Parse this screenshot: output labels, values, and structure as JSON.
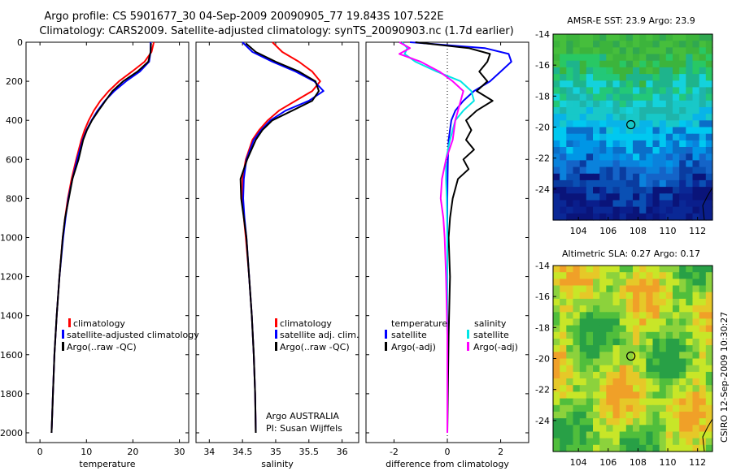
{
  "title_line1": "Argo profile: CS 5901677_30 04-Sep-2009 20090905_77 19.843S 107.522E",
  "title_line2": "Climatology: CARS2009. Satellite-adjusted climatology: synTS_20090903.nc (1.7d earlier)",
  "side_credit": "CSIRO 12-Sep-2009 10:30:27",
  "map_sst": {
    "title": "AMSR-E SST: 23.9 Argo: 23.9",
    "xticks": [
      "104",
      "106",
      "108",
      "110",
      "112"
    ],
    "yticks": [
      "-14",
      "-16",
      "-18",
      "-20",
      "-22",
      "-24"
    ],
    "float_lon": 107.522,
    "float_lat": -19.843
  },
  "map_sla": {
    "title": "Altimetric SLA: 0.27 Argo: 0.17",
    "xticks": [
      "104",
      "106",
      "108",
      "110",
      "112"
    ],
    "yticks": [
      "-14",
      "-16",
      "-18",
      "-20",
      "-22",
      "-24"
    ],
    "float_lon": 107.522,
    "float_lat": -19.843
  },
  "colors": {
    "climatology": "#ff0000",
    "satellite_adjusted": "#0000ff",
    "argo": "#000000",
    "salinity_satellite": "#00e5e5",
    "salinity_argo": "#ff00ff"
  },
  "chart_data": [
    {
      "type": "line",
      "xlabel": "temperature",
      "ylabel": "",
      "xlim": [
        -3,
        32
      ],
      "ylim": [
        2050,
        0
      ],
      "xticks": [
        "0",
        "10",
        "20",
        "30"
      ],
      "yticks": [
        "0",
        "200",
        "400",
        "600",
        "800",
        "1000",
        "1200",
        "1400",
        "1600",
        "1800",
        "2000"
      ],
      "legend": [
        "climatology",
        "satellite-adjusted climatology",
        "Argo(..raw -QC)"
      ],
      "series": [
        {
          "name": "climatology",
          "y": [
            0,
            50,
            100,
            150,
            200,
            250,
            300,
            350,
            400,
            450,
            500,
            600,
            700,
            800,
            900,
            1000,
            1200,
            1400,
            1600,
            1800,
            2000
          ],
          "x": [
            24.5,
            24.0,
            22.5,
            19.8,
            17.0,
            14.8,
            13.0,
            11.6,
            10.5,
            9.6,
            8.9,
            7.8,
            6.8,
            6.0,
            5.4,
            4.9,
            4.2,
            3.6,
            3.1,
            2.8,
            2.5
          ]
        },
        {
          "name": "satellite-adjusted climatology",
          "y": [
            0,
            50,
            100,
            150,
            200,
            250,
            300,
            350,
            400,
            450,
            500,
            600,
            700,
            800,
            900,
            1000,
            1200,
            1400,
            1600,
            1800,
            2000
          ],
          "x": [
            23.8,
            23.8,
            23.5,
            21.5,
            18.5,
            16.0,
            14.0,
            12.4,
            11.1,
            10.0,
            9.2,
            8.0,
            7.0,
            6.1,
            5.5,
            5.0,
            4.2,
            3.6,
            3.1,
            2.8,
            2.5
          ]
        },
        {
          "name": "Argo(..raw -QC)",
          "y": [
            5,
            50,
            100,
            150,
            200,
            250,
            300,
            350,
            400,
            450,
            500,
            600,
            700,
            800,
            900,
            1000,
            1200,
            1400,
            1600,
            1800,
            2000
          ],
          "x": [
            23.9,
            23.8,
            23.3,
            21.0,
            17.9,
            15.6,
            14.1,
            12.6,
            11.2,
            10.1,
            9.3,
            8.3,
            7.0,
            6.2,
            5.4,
            4.9,
            4.2,
            3.6,
            3.1,
            2.8,
            2.5
          ]
        }
      ]
    },
    {
      "type": "line",
      "xlabel": "salinity",
      "ylabel": "",
      "xlim": [
        33.8,
        36.25
      ],
      "ylim": [
        2050,
        0
      ],
      "xticks": [
        "34",
        "34.5",
        "35",
        "35.5",
        "36"
      ],
      "legend": [
        "climatology",
        "satellite adj. clim.",
        "Argo(..raw -QC)"
      ],
      "annotation": [
        "Argo AUSTRALIA",
        "PI: Susan Wijffels"
      ],
      "series": [
        {
          "name": "climatology",
          "y": [
            0,
            50,
            100,
            150,
            200,
            250,
            300,
            350,
            400,
            450,
            500,
            600,
            700,
            800,
            900,
            1000,
            1200,
            1400,
            1600,
            1800,
            2000
          ],
          "x": [
            34.95,
            35.1,
            35.35,
            35.55,
            35.67,
            35.55,
            35.3,
            35.05,
            34.88,
            34.75,
            34.65,
            34.55,
            34.5,
            34.5,
            34.52,
            34.55,
            34.6,
            34.64,
            34.67,
            34.69,
            34.7
          ]
        },
        {
          "name": "satellite adj. clim.",
          "y": [
            0,
            50,
            100,
            150,
            200,
            250,
            300,
            350,
            400,
            450,
            500,
            600,
            700,
            800,
            900,
            1000,
            1200,
            1400,
            1600,
            1800,
            2000
          ],
          "x": [
            34.5,
            34.65,
            34.95,
            35.3,
            35.58,
            35.72,
            35.5,
            35.15,
            34.92,
            34.78,
            34.67,
            34.56,
            34.52,
            34.51,
            34.53,
            34.56,
            34.6,
            34.64,
            34.67,
            34.69,
            34.7
          ]
        },
        {
          "name": "Argo(..raw -QC)",
          "y": [
            5,
            50,
            100,
            150,
            200,
            250,
            300,
            350,
            400,
            450,
            500,
            600,
            700,
            800,
            900,
            1000,
            1200,
            1400,
            1600,
            1800,
            2000
          ],
          "x": [
            34.55,
            34.7,
            35.0,
            35.35,
            35.6,
            35.65,
            35.55,
            35.25,
            34.95,
            34.8,
            34.7,
            34.57,
            34.47,
            34.48,
            34.52,
            34.56,
            34.6,
            34.64,
            34.67,
            34.69,
            34.7
          ]
        }
      ]
    },
    {
      "type": "line",
      "xlabel": "difference from climatology",
      "ylabel": "",
      "xlim": [
        -3.05,
        3.05
      ],
      "ylim": [
        2050,
        0
      ],
      "xticks": [
        "-2",
        "0",
        "2"
      ],
      "legend_groups": [
        {
          "heading": "temperature",
          "items": [
            "satellite",
            "Argo(-adj)"
          ]
        },
        {
          "heading": "salinity",
          "items": [
            "satellite",
            "Argo(-adj)"
          ]
        }
      ],
      "series": [
        {
          "name": "satellite",
          "y": [
            0,
            30,
            60,
            100,
            150,
            200,
            250,
            300,
            350,
            400,
            500,
            600,
            700,
            800,
            1000,
            1500,
            2000
          ],
          "x": [
            -1.4,
            1.4,
            2.3,
            2.4,
            2.0,
            1.6,
            1.0,
            0.6,
            0.3,
            0.15,
            0.05,
            0.02,
            0.01,
            0.0,
            0.0,
            0.0,
            0.0
          ]
        },
        {
          "name": "Argo(-adj)",
          "y": [
            0,
            30,
            60,
            100,
            150,
            200,
            250,
            300,
            350,
            400,
            450,
            500,
            550,
            600,
            650,
            700,
            800,
            900,
            1000,
            1200,
            1500,
            2000
          ],
          "x": [
            -1.2,
            0.8,
            1.6,
            1.5,
            1.2,
            1.5,
            1.1,
            1.7,
            1.1,
            0.7,
            0.9,
            0.7,
            1.0,
            0.6,
            0.8,
            0.4,
            0.2,
            0.1,
            0.05,
            0.1,
            0.05,
            0.0
          ]
        },
        {
          "name": "satellite",
          "y": [
            0,
            30,
            60,
            100,
            150,
            200,
            250,
            300,
            350,
            400,
            500,
            600,
            700,
            800,
            1000,
            1500,
            2000
          ],
          "x": [
            -1.7,
            -1.5,
            -1.6,
            -1.2,
            -0.4,
            0.5,
            0.9,
            1.0,
            0.6,
            0.3,
            0.1,
            -0.05,
            -0.05,
            -0.02,
            0.0,
            0.0,
            0.0
          ]
        },
        {
          "name": "Argo(-adj)",
          "y": [
            0,
            30,
            60,
            100,
            150,
            200,
            250,
            300,
            350,
            400,
            500,
            600,
            700,
            800,
            900,
            1000,
            1200,
            1500,
            2000
          ],
          "x": [
            -1.8,
            -1.4,
            -1.8,
            -1.0,
            -0.3,
            0.2,
            0.6,
            0.5,
            0.4,
            0.3,
            0.2,
            -0.05,
            -0.2,
            -0.25,
            -0.15,
            -0.1,
            -0.05,
            0.0,
            0.0
          ]
        }
      ]
    }
  ]
}
